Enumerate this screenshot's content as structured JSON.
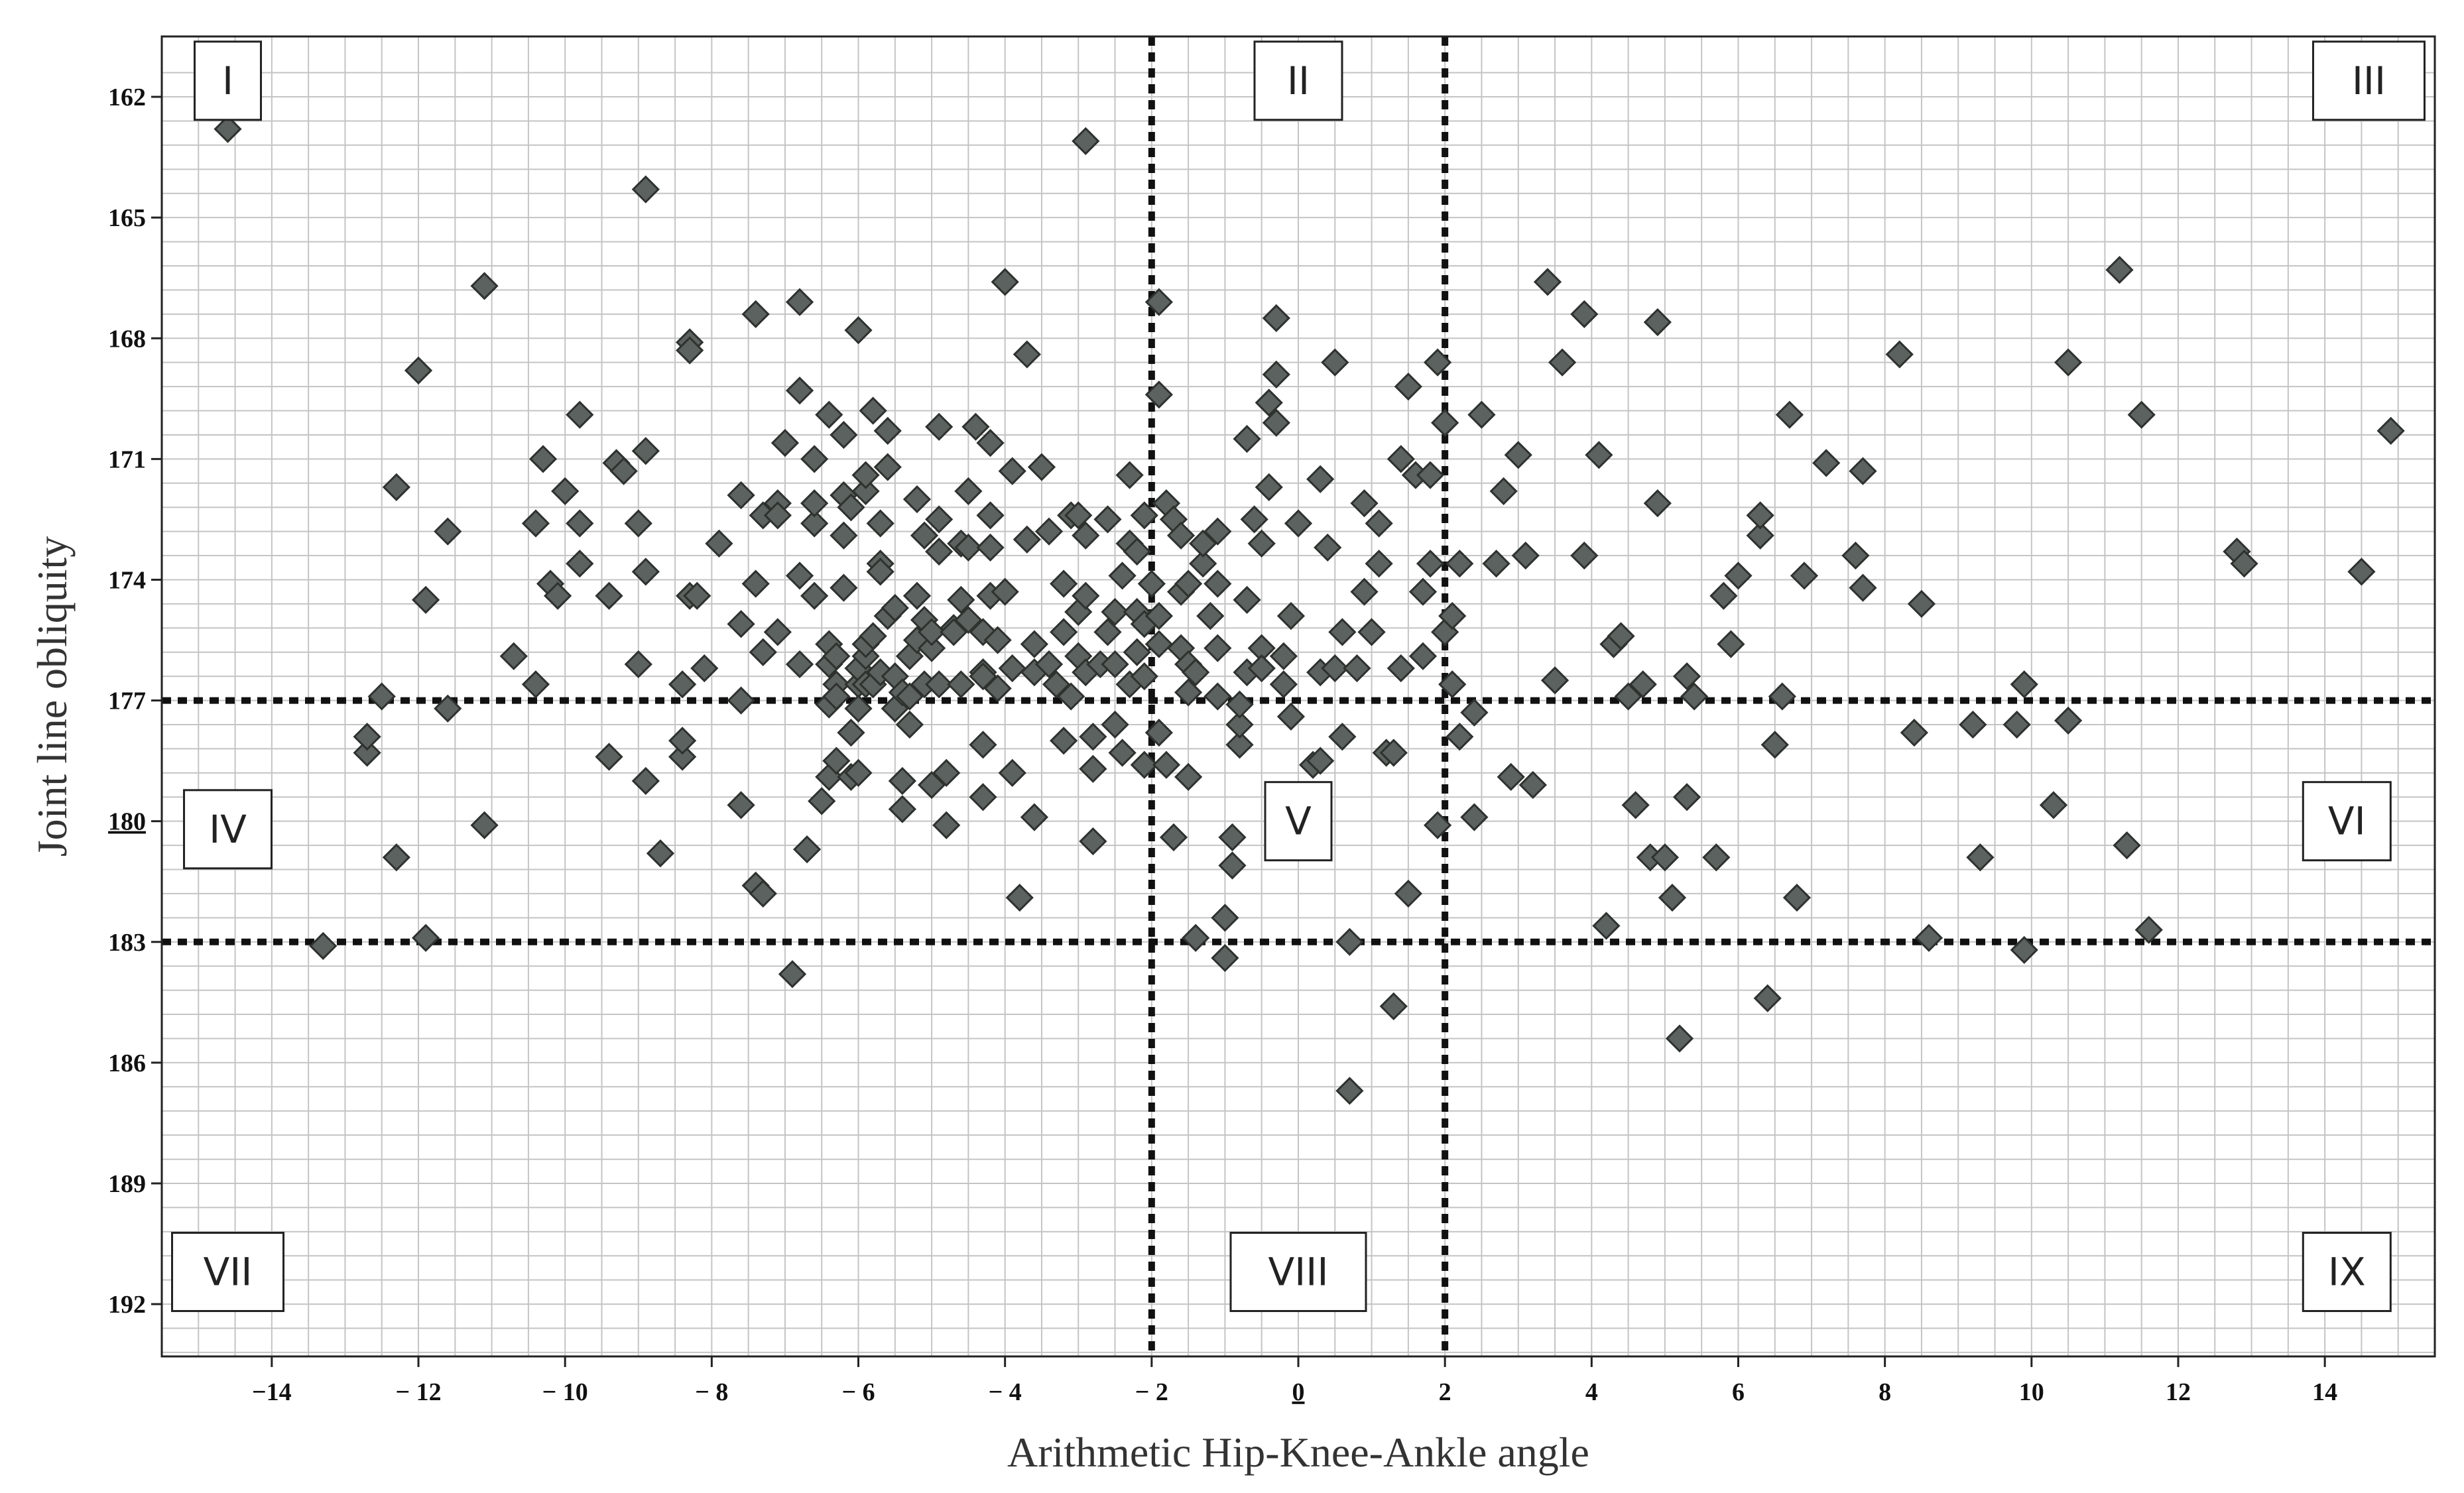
{
  "chart_data": {
    "type": "scatter",
    "title": "",
    "xlabel": "Arithmetic Hip-Knee-Ankle angle",
    "ylabel": "Joint line obliquity",
    "xlim": [
      -15.5,
      15.5
    ],
    "ylim": [
      160.5,
      193.3
    ],
    "y_inverted": true,
    "grid": true,
    "x_ticks": [
      -14,
      -12,
      -10,
      -8,
      -6,
      -4,
      -2,
      0,
      2,
      4,
      6,
      8,
      10,
      12,
      14
    ],
    "x_tick_labels": [
      "−14",
      "− 12",
      "− 10",
      "− 8",
      "− 6",
      "− 4",
      "− 2",
      "0",
      "2",
      "4",
      "6",
      "8",
      "10",
      "12",
      "14"
    ],
    "y_ticks": [
      162,
      165,
      168,
      171,
      174,
      177,
      180,
      183,
      186,
      189,
      192
    ],
    "y_tick_labels": [
      "162",
      "165",
      "168",
      "171",
      "174",
      "177",
      "180",
      "183",
      "186",
      "189",
      "192"
    ],
    "underlined_ticks": {
      "x": "0",
      "y": "180"
    },
    "cutoffs": {
      "x": [
        -2,
        2
      ],
      "y": [
        177,
        183
      ]
    },
    "regions": [
      {
        "label": "I",
        "x": -14.6,
        "y": 161.6
      },
      {
        "label": "II",
        "x": 0,
        "y": 161.6
      },
      {
        "label": "III",
        "x": 14.6,
        "y": 161.6
      },
      {
        "label": "IV",
        "x": -14.6,
        "y": 180.2
      },
      {
        "label": "V",
        "x": 0,
        "y": 180.0
      },
      {
        "label": "VI",
        "x": 14.3,
        "y": 180.0
      },
      {
        "label": "VII",
        "x": -14.6,
        "y": 191.2
      },
      {
        "label": "VIII",
        "x": 0,
        "y": 191.2
      },
      {
        "label": "IX",
        "x": 14.3,
        "y": 191.2
      }
    ],
    "points": [
      [
        -14.6,
        162.8
      ],
      [
        -13.3,
        183.1
      ],
      [
        -12.7,
        178.3
      ],
      [
        -12.7,
        177.9
      ],
      [
        -12.5,
        176.9
      ],
      [
        -12.3,
        180.9
      ],
      [
        -12.3,
        171.7
      ],
      [
        -12.0,
        168.8
      ],
      [
        -11.9,
        174.5
      ],
      [
        -11.9,
        182.9
      ],
      [
        -11.6,
        177.2
      ],
      [
        -11.6,
        172.8
      ],
      [
        -11.1,
        166.7
      ],
      [
        -11.1,
        180.1
      ],
      [
        -10.7,
        175.9
      ],
      [
        -10.4,
        176.6
      ],
      [
        -10.4,
        172.6
      ],
      [
        -10.3,
        171.0
      ],
      [
        -10.2,
        174.1
      ],
      [
        -10.1,
        174.4
      ],
      [
        -10.0,
        171.8
      ],
      [
        -9.8,
        169.9
      ],
      [
        -9.8,
        172.6
      ],
      [
        -9.8,
        173.6
      ],
      [
        -9.4,
        174.4
      ],
      [
        -9.4,
        178.4
      ],
      [
        -9.3,
        171.1
      ],
      [
        -9.2,
        171.3
      ],
      [
        -9.0,
        172.6
      ],
      [
        -9.0,
        176.1
      ],
      [
        -8.9,
        179.0
      ],
      [
        -8.9,
        173.8
      ],
      [
        -8.9,
        170.8
      ],
      [
        -8.9,
        164.3
      ],
      [
        -8.7,
        180.8
      ],
      [
        -8.4,
        178.4
      ],
      [
        -8.4,
        178.0
      ],
      [
        -8.4,
        176.6
      ],
      [
        -8.3,
        174.4
      ],
      [
        -8.3,
        168.1
      ],
      [
        -8.3,
        168.3
      ],
      [
        -8.2,
        174.4
      ],
      [
        -8.1,
        176.2
      ],
      [
        -7.9,
        173.1
      ],
      [
        -7.6,
        179.6
      ],
      [
        -7.6,
        177.0
      ],
      [
        -7.6,
        175.1
      ],
      [
        -7.6,
        171.9
      ],
      [
        -7.4,
        167.4
      ],
      [
        -7.4,
        181.6
      ],
      [
        -7.4,
        174.1
      ],
      [
        -7.3,
        175.8
      ],
      [
        -7.3,
        181.8
      ],
      [
        -7.3,
        172.4
      ],
      [
        -7.1,
        172.1
      ],
      [
        -7.1,
        172.4
      ],
      [
        -7.1,
        175.3
      ],
      [
        -7.0,
        170.6
      ],
      [
        -6.9,
        183.8
      ],
      [
        -6.8,
        173.9
      ],
      [
        -6.8,
        176.1
      ],
      [
        -6.8,
        169.3
      ],
      [
        -6.8,
        167.1
      ],
      [
        -6.7,
        180.7
      ],
      [
        -6.6,
        174.4
      ],
      [
        -6.6,
        172.6
      ],
      [
        -6.6,
        172.1
      ],
      [
        -6.6,
        171.0
      ],
      [
        -6.5,
        179.5
      ],
      [
        -6.4,
        175.6
      ],
      [
        -6.4,
        176.1
      ],
      [
        -6.4,
        177.1
      ],
      [
        -6.4,
        178.9
      ],
      [
        -6.4,
        169.9
      ],
      [
        -6.3,
        175.9
      ],
      [
        -6.3,
        176.6
      ],
      [
        -6.3,
        178.5
      ],
      [
        -6.3,
        176.9
      ],
      [
        -6.2,
        174.2
      ],
      [
        -6.2,
        171.9
      ],
      [
        -6.2,
        172.9
      ],
      [
        -6.2,
        170.4
      ],
      [
        -6.1,
        178.9
      ],
      [
        -6.1,
        177.8
      ],
      [
        -6.1,
        172.2
      ],
      [
        -6.0,
        167.8
      ],
      [
        -6.0,
        176.6
      ],
      [
        -6.0,
        178.8
      ],
      [
        -6.0,
        176.2
      ],
      [
        -6.0,
        177.2
      ],
      [
        -5.9,
        176.6
      ],
      [
        -5.9,
        175.9
      ],
      [
        -5.9,
        171.8
      ],
      [
        -5.9,
        171.4
      ],
      [
        -5.9,
        175.6
      ],
      [
        -5.8,
        175.4
      ],
      [
        -5.8,
        169.8
      ],
      [
        -5.8,
        176.6
      ],
      [
        -5.7,
        176.3
      ],
      [
        -5.7,
        172.6
      ],
      [
        -5.7,
        173.6
      ],
      [
        -5.7,
        173.8
      ],
      [
        -5.6,
        174.9
      ],
      [
        -5.6,
        171.2
      ],
      [
        -5.6,
        170.3
      ],
      [
        -5.5,
        174.7
      ],
      [
        -5.5,
        176.4
      ],
      [
        -5.5,
        177.2
      ],
      [
        -5.4,
        179.0
      ],
      [
        -5.4,
        176.8
      ],
      [
        -5.4,
        179.7
      ],
      [
        -5.3,
        176.9
      ],
      [
        -5.3,
        177.6
      ],
      [
        -5.3,
        175.9
      ],
      [
        -5.2,
        175.5
      ],
      [
        -5.2,
        174.4
      ],
      [
        -5.2,
        172.0
      ],
      [
        -5.1,
        175.0
      ],
      [
        -5.1,
        172.9
      ],
      [
        -5.1,
        176.6
      ],
      [
        -5.0,
        175.7
      ],
      [
        -5.0,
        179.1
      ],
      [
        -5.0,
        175.3
      ],
      [
        -4.9,
        172.5
      ],
      [
        -4.9,
        173.3
      ],
      [
        -4.9,
        176.6
      ],
      [
        -4.9,
        170.2
      ],
      [
        -4.8,
        180.1
      ],
      [
        -4.8,
        178.8
      ],
      [
        -4.7,
        175.2
      ],
      [
        -4.7,
        175.3
      ],
      [
        -4.6,
        173.1
      ],
      [
        -4.6,
        176.6
      ],
      [
        -4.6,
        174.5
      ],
      [
        -4.5,
        171.8
      ],
      [
        -4.5,
        173.2
      ],
      [
        -4.5,
        175.0
      ],
      [
        -4.4,
        170.2
      ],
      [
        -4.3,
        179.4
      ],
      [
        -4.3,
        178.1
      ],
      [
        -4.3,
        176.3
      ],
      [
        -4.3,
        175.3
      ],
      [
        -4.3,
        176.4
      ],
      [
        -4.2,
        174.4
      ],
      [
        -4.2,
        170.6
      ],
      [
        -4.2,
        173.2
      ],
      [
        -4.2,
        172.4
      ],
      [
        -4.1,
        175.5
      ],
      [
        -4.1,
        176.7
      ],
      [
        -4.0,
        166.6
      ],
      [
        -4.0,
        174.3
      ],
      [
        -3.9,
        178.8
      ],
      [
        -3.9,
        176.2
      ],
      [
        -3.9,
        171.3
      ],
      [
        -3.8,
        181.9
      ],
      [
        -3.7,
        168.4
      ],
      [
        -3.7,
        173.0
      ],
      [
        -3.6,
        179.9
      ],
      [
        -3.6,
        176.3
      ],
      [
        -3.6,
        175.6
      ],
      [
        -3.5,
        171.2
      ],
      [
        -3.4,
        176.1
      ],
      [
        -3.4,
        172.8
      ],
      [
        -3.3,
        176.6
      ],
      [
        -3.2,
        178.0
      ],
      [
        -3.2,
        175.3
      ],
      [
        -3.2,
        174.1
      ],
      [
        -3.1,
        172.4
      ],
      [
        -3.1,
        176.9
      ],
      [
        -3.0,
        174.8
      ],
      [
        -3.0,
        172.4
      ],
      [
        -3.0,
        175.9
      ],
      [
        -2.9,
        176.3
      ],
      [
        -2.9,
        172.9
      ],
      [
        -2.9,
        163.1
      ],
      [
        -2.9,
        174.4
      ],
      [
        -2.8,
        180.5
      ],
      [
        -2.8,
        177.9
      ],
      [
        -2.8,
        178.7
      ],
      [
        -2.7,
        176.1
      ],
      [
        -2.6,
        172.5
      ],
      [
        -2.6,
        175.3
      ],
      [
        -2.5,
        176.1
      ],
      [
        -2.5,
        174.8
      ],
      [
        -2.5,
        177.6
      ],
      [
        -2.4,
        178.3
      ],
      [
        -2.4,
        173.9
      ],
      [
        -2.3,
        176.6
      ],
      [
        -2.3,
        171.4
      ],
      [
        -2.3,
        173.1
      ],
      [
        -2.2,
        175.8
      ],
      [
        -2.2,
        173.3
      ],
      [
        -2.2,
        174.8
      ],
      [
        -2.1,
        175.1
      ],
      [
        -2.1,
        176.4
      ],
      [
        -2.1,
        172.4
      ],
      [
        -2.1,
        178.6
      ],
      [
        -2.0,
        174.1
      ],
      [
        -1.9,
        174.9
      ],
      [
        -1.9,
        175.6
      ],
      [
        -1.9,
        177.8
      ],
      [
        -1.9,
        167.1
      ],
      [
        -1.9,
        169.4
      ],
      [
        -1.8,
        178.6
      ],
      [
        -1.8,
        172.1
      ],
      [
        -1.7,
        172.5
      ],
      [
        -1.7,
        180.4
      ],
      [
        -1.6,
        172.9
      ],
      [
        -1.6,
        174.3
      ],
      [
        -1.6,
        175.7
      ],
      [
        -1.5,
        176.1
      ],
      [
        -1.5,
        178.9
      ],
      [
        -1.5,
        176.8
      ],
      [
        -1.5,
        174.1
      ],
      [
        -1.4,
        176.3
      ],
      [
        -1.4,
        182.9
      ],
      [
        -1.3,
        173.6
      ],
      [
        -1.3,
        173.1
      ],
      [
        -1.2,
        174.9
      ],
      [
        -1.1,
        172.8
      ],
      [
        -1.1,
        174.1
      ],
      [
        -1.1,
        175.7
      ],
      [
        -1.1,
        176.9
      ],
      [
        -1.0,
        182.4
      ],
      [
        -1.0,
        183.4
      ],
      [
        -0.9,
        181.1
      ],
      [
        -0.9,
        180.4
      ],
      [
        -0.8,
        178.1
      ],
      [
        -0.8,
        177.6
      ],
      [
        -0.8,
        177.1
      ],
      [
        -0.7,
        176.3
      ],
      [
        -0.7,
        174.5
      ],
      [
        -0.7,
        170.5
      ],
      [
        -0.6,
        172.5
      ],
      [
        -0.5,
        175.7
      ],
      [
        -0.5,
        176.2
      ],
      [
        -0.5,
        173.1
      ],
      [
        -0.4,
        171.7
      ],
      [
        -0.4,
        169.6
      ],
      [
        -0.3,
        170.1
      ],
      [
        -0.3,
        168.9
      ],
      [
        -0.3,
        167.5
      ],
      [
        -0.2,
        175.9
      ],
      [
        -0.2,
        176.6
      ],
      [
        -0.1,
        177.4
      ],
      [
        -0.1,
        174.9
      ],
      [
        -0.1,
        180.1
      ],
      [
        0.0,
        172.6
      ],
      [
        0.1,
        179.8
      ],
      [
        0.2,
        178.6
      ],
      [
        0.3,
        178.5
      ],
      [
        0.3,
        176.3
      ],
      [
        0.3,
        171.5
      ],
      [
        0.4,
        173.2
      ],
      [
        0.5,
        176.2
      ],
      [
        0.5,
        168.6
      ],
      [
        0.6,
        177.9
      ],
      [
        0.6,
        175.3
      ],
      [
        0.7,
        186.7
      ],
      [
        0.7,
        183.0
      ],
      [
        0.8,
        176.2
      ],
      [
        0.9,
        172.1
      ],
      [
        0.9,
        174.3
      ],
      [
        1.0,
        175.3
      ],
      [
        1.1,
        173.6
      ],
      [
        1.1,
        172.6
      ],
      [
        1.2,
        178.3
      ],
      [
        1.3,
        184.6
      ],
      [
        1.3,
        178.3
      ],
      [
        1.4,
        176.2
      ],
      [
        1.4,
        171.0
      ],
      [
        1.5,
        169.2
      ],
      [
        1.5,
        181.8
      ],
      [
        1.6,
        171.4
      ],
      [
        1.7,
        175.9
      ],
      [
        1.7,
        174.3
      ],
      [
        1.8,
        173.6
      ],
      [
        1.8,
        171.4
      ],
      [
        1.9,
        168.6
      ],
      [
        1.9,
        180.1
      ],
      [
        2.0,
        175.3
      ],
      [
        2.0,
        170.1
      ],
      [
        2.1,
        176.6
      ],
      [
        2.1,
        174.9
      ],
      [
        2.2,
        177.9
      ],
      [
        2.2,
        173.6
      ],
      [
        2.4,
        177.3
      ],
      [
        2.4,
        179.9
      ],
      [
        2.5,
        169.9
      ],
      [
        2.7,
        173.6
      ],
      [
        2.8,
        171.8
      ],
      [
        2.9,
        178.9
      ],
      [
        3.0,
        170.9
      ],
      [
        3.1,
        173.4
      ],
      [
        3.2,
        179.1
      ],
      [
        3.4,
        166.6
      ],
      [
        3.5,
        176.5
      ],
      [
        3.6,
        168.6
      ],
      [
        3.9,
        173.4
      ],
      [
        3.9,
        167.4
      ],
      [
        4.1,
        170.9
      ],
      [
        4.2,
        182.6
      ],
      [
        4.3,
        175.6
      ],
      [
        4.4,
        175.4
      ],
      [
        4.5,
        176.9
      ],
      [
        4.6,
        179.6
      ],
      [
        4.7,
        176.6
      ],
      [
        4.8,
        180.9
      ],
      [
        4.9,
        172.1
      ],
      [
        4.9,
        167.6
      ],
      [
        5.0,
        180.9
      ],
      [
        5.1,
        181.9
      ],
      [
        5.2,
        185.4
      ],
      [
        5.3,
        179.4
      ],
      [
        5.3,
        176.4
      ],
      [
        5.4,
        176.9
      ],
      [
        5.7,
        180.9
      ],
      [
        5.8,
        174.4
      ],
      [
        5.9,
        175.6
      ],
      [
        6.0,
        173.9
      ],
      [
        6.3,
        172.9
      ],
      [
        6.3,
        172.4
      ],
      [
        6.4,
        184.4
      ],
      [
        6.5,
        178.1
      ],
      [
        6.6,
        176.9
      ],
      [
        6.7,
        169.9
      ],
      [
        6.8,
        181.9
      ],
      [
        6.9,
        173.9
      ],
      [
        7.2,
        171.1
      ],
      [
        7.6,
        173.4
      ],
      [
        7.7,
        174.2
      ],
      [
        7.7,
        171.3
      ],
      [
        8.2,
        168.4
      ],
      [
        8.4,
        177.8
      ],
      [
        8.5,
        174.6
      ],
      [
        8.6,
        182.9
      ],
      [
        9.2,
        177.6
      ],
      [
        9.3,
        180.9
      ],
      [
        9.8,
        177.6
      ],
      [
        9.9,
        176.6
      ],
      [
        9.9,
        183.2
      ],
      [
        10.3,
        179.6
      ],
      [
        10.5,
        177.5
      ],
      [
        10.5,
        168.6
      ],
      [
        11.2,
        166.3
      ],
      [
        11.3,
        180.6
      ],
      [
        11.5,
        169.9
      ],
      [
        11.6,
        182.7
      ],
      [
        12.8,
        173.3
      ],
      [
        12.9,
        173.6
      ],
      [
        14.5,
        173.8
      ],
      [
        14.9,
        170.3
      ]
    ]
  }
}
